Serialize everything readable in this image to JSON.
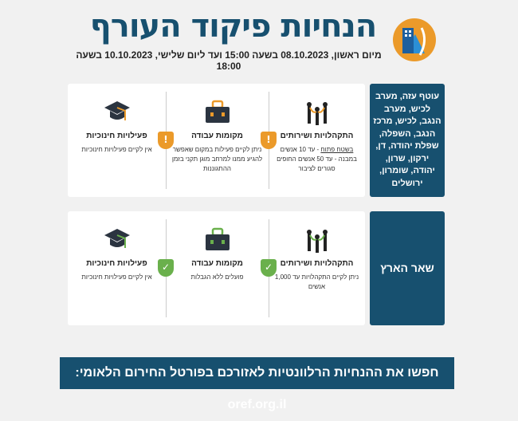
{
  "header": {
    "title": "הנחיות פיקוד העורף",
    "subtitle": "מיום ראשון, 08.10.2023 בשעה 15:00  ועד ליום שלישי, 10.10.2023 בשעה 18:00",
    "logo": "home-front-command-logo"
  },
  "colors": {
    "primary": "#17506f",
    "warning": "#eb9a2a",
    "ok": "#6ab04c"
  },
  "sections": [
    {
      "region": "עוטף עזה, מערב לכיש, מערב הנגב, לכיש, מרכז הנגב, השפלה, שפלת יהודה, דן, ירקון, שרון, יהודה, שומרון, ירושלים",
      "status": "warning",
      "items": [
        {
          "title": "התקהלויות ושירותים",
          "text_underlined": "בשטח פתוח",
          "text": " - עד 10 אנשים במבנה - עד 50 אנשים החופים סגורים לציבור",
          "icon": "gathering-icon"
        },
        {
          "title": "מקומות עבודה",
          "text": "ניתן לקיים פעילות במקום שאפשר להגיע ממנו למרחב מוגן תקני בזמן ההתגוננות",
          "icon": "briefcase-icon"
        },
        {
          "title": "פעילויות חינוכיות",
          "text": "אין לקיים פעילויות חינוכיות",
          "icon": "graduation-cap-icon"
        }
      ]
    },
    {
      "region": "שאר הארץ",
      "status": "ok",
      "items": [
        {
          "title": "התקהלויות ושירותים",
          "text": "ניתן לקיים התקהלויות עד 1,000 אנשים",
          "icon": "gathering-icon"
        },
        {
          "title": "מקומות עבודה",
          "text": "פועלים ללא הגבלות",
          "icon": "briefcase-icon"
        },
        {
          "title": "פעילויות חינוכיות",
          "text": "אין לקיים פעילויות חינוכיות",
          "icon": "graduation-cap-icon"
        }
      ]
    }
  ],
  "footer": {
    "text": "חפשו את ההנחיות הרלוונטיות לאזורכם בפורטל החירום הלאומי: oref.org.il"
  }
}
